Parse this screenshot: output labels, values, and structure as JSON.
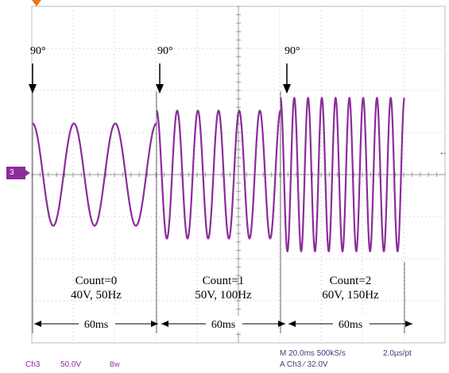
{
  "channel_marker": "3",
  "phase_labels": [
    "90°",
    "90°",
    "90°"
  ],
  "segments": [
    {
      "count": "Count=0",
      "spec": "40V, 50Hz",
      "duration": "60ms"
    },
    {
      "count": "Count=1",
      "spec": "50V, 100Hz",
      "duration": "60ms"
    },
    {
      "count": "Count=2",
      "spec": "60V, 150Hz",
      "duration": "60ms"
    }
  ],
  "status_bar": {
    "channel": "Ch3",
    "scale": "50.0V",
    "bw": "Bw",
    "timebase": "M 20.0ms 500kS/s",
    "resolution": "2.0µs/pt",
    "trigger": "A  Ch3  ⁄  32.0V"
  },
  "colors": {
    "trace": "#8b2c9a",
    "grid": "#bdbdbd",
    "trigger_marker": "#e8761c"
  },
  "chart_data": {
    "type": "line",
    "title": "",
    "xlabel": "",
    "ylabel": "",
    "series": [
      {
        "amplitude_V": 40,
        "frequency_Hz": 50,
        "start_phase_deg": 90,
        "duration_ms": 60
      },
      {
        "amplitude_V": 50,
        "frequency_Hz": 100,
        "start_phase_deg": 90,
        "duration_ms": 60
      },
      {
        "amplitude_V": 60,
        "frequency_Hz": 150,
        "start_phase_deg": 90,
        "duration_ms": 60
      }
    ],
    "grid": true
  }
}
